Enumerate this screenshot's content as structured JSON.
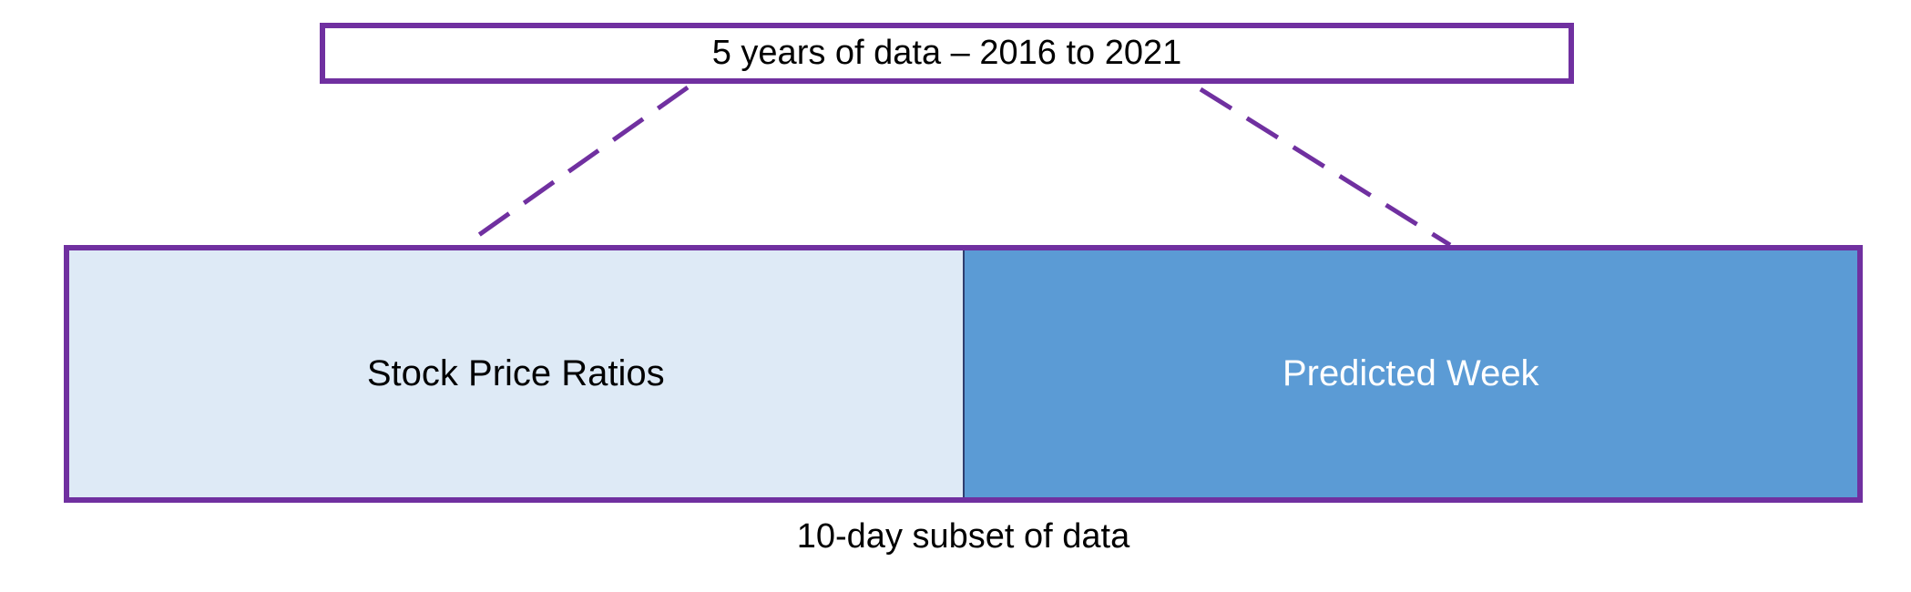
{
  "top_box": {
    "label": "5 years of data – 2016 to 2021"
  },
  "bottom_box": {
    "left_label": "Stock Price Ratios",
    "right_label": "Predicted Week"
  },
  "caption": "10-day subset of data",
  "colors": {
    "border": "#7030a0",
    "left_fill": "#deeaf6",
    "right_fill": "#5b9bd5",
    "right_text": "#ffffff"
  }
}
